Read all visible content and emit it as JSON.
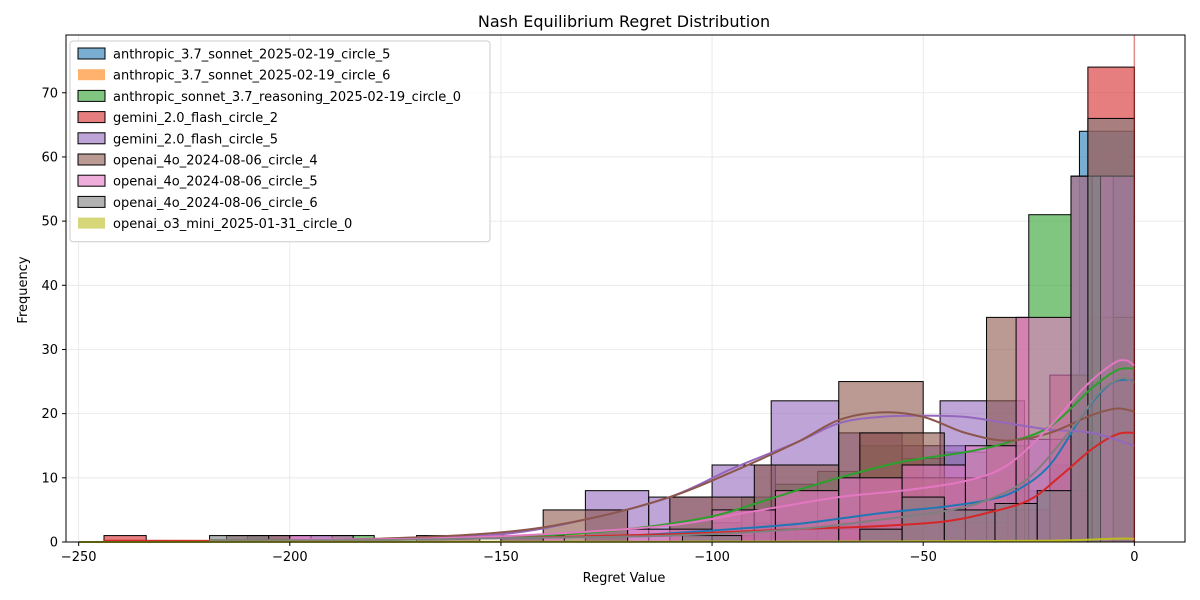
{
  "chart_data": {
    "type": "bar",
    "title": "Nash Equilibrium Regret Distribution",
    "xlabel": "Regret Value",
    "ylabel": "Frequency",
    "xlim": [
      -253,
      12
    ],
    "ylim": [
      0,
      79
    ],
    "xticks": [
      -250,
      -200,
      -150,
      -100,
      -50,
      0
    ],
    "yticks": [
      0,
      10,
      20,
      30,
      40,
      50,
      60,
      70
    ],
    "grid": true,
    "legend_position": "top-left",
    "reference_line_x": 0,
    "series": [
      {
        "name": "anthropic_3.7_sonnet_2025-02-19_circle_5",
        "color": "#1f77b4",
        "bins": [
          [
            -195,
            -185,
            1
          ],
          [
            -150,
            -140,
            1
          ],
          [
            -90,
            -80,
            3
          ],
          [
            -80,
            -70,
            2
          ],
          [
            -70,
            -60,
            3
          ],
          [
            -60,
            -50,
            2
          ],
          [
            -50,
            -40,
            6
          ],
          [
            -40,
            -30,
            5
          ],
          [
            -30,
            -20,
            8
          ],
          [
            -20,
            -10,
            12
          ],
          [
            -13,
            0,
            64
          ]
        ],
        "kde": [
          [
            -195,
            0.2
          ],
          [
            -150,
            0.6
          ],
          [
            -120,
            1.0
          ],
          [
            -100,
            1.8
          ],
          [
            -80,
            2.8
          ],
          [
            -60,
            4.5
          ],
          [
            -45,
            5.5
          ],
          [
            -35,
            6.5
          ],
          [
            -28,
            8.0
          ],
          [
            -20,
            12.0
          ],
          [
            -12,
            20.0
          ],
          [
            -6,
            24.5
          ],
          [
            -2,
            25.3
          ],
          [
            0,
            25.0
          ]
        ]
      },
      {
        "name": "anthropic_3.7_sonnet_2025-02-19_circle_6",
        "color": "#ff7f0e",
        "bins": [],
        "kde": []
      },
      {
        "name": "anthropic_sonnet_3.7_reasoning_2025-02-19_circle_0",
        "color": "#2ca02c",
        "bins": [
          [
            -190,
            -180,
            1
          ],
          [
            -150,
            -140,
            1
          ],
          [
            -100,
            -93,
            3
          ],
          [
            -93,
            -85,
            7
          ],
          [
            -85,
            -75,
            9
          ],
          [
            -75,
            -65,
            11
          ],
          [
            -65,
            -55,
            15
          ],
          [
            -55,
            -45,
            13
          ],
          [
            -45,
            -35,
            14
          ],
          [
            -35,
            -25,
            15
          ],
          [
            -25,
            -15,
            51
          ],
          [
            -15,
            0,
            26
          ]
        ],
        "kde": [
          [
            -190,
            0.4
          ],
          [
            -160,
            0.6
          ],
          [
            -140,
            1.0
          ],
          [
            -120,
            2.0
          ],
          [
            -100,
            4.0
          ],
          [
            -85,
            7.0
          ],
          [
            -70,
            10.0
          ],
          [
            -55,
            12.5
          ],
          [
            -40,
            14.0
          ],
          [
            -30,
            15.5
          ],
          [
            -20,
            18.0
          ],
          [
            -10,
            24.0
          ],
          [
            -4,
            26.8
          ],
          [
            0,
            27.0
          ]
        ]
      },
      {
        "name": "gemini_2.0_flash_circle_2",
        "color": "#d62728",
        "bins": [
          [
            -244,
            -234,
            1
          ],
          [
            -150,
            -140,
            1
          ],
          [
            -100,
            -90,
            1
          ],
          [
            -70,
            -60,
            2
          ],
          [
            -60,
            -50,
            2
          ],
          [
            -50,
            -40,
            3
          ],
          [
            -40,
            -30,
            3
          ],
          [
            -30,
            -20,
            5
          ],
          [
            -20,
            -10,
            8
          ],
          [
            -11,
            0,
            74
          ]
        ],
        "kde": [
          [
            -244,
            0.2
          ],
          [
            -200,
            0.2
          ],
          [
            -150,
            0.6
          ],
          [
            -110,
            1.2
          ],
          [
            -80,
            2.0
          ],
          [
            -60,
            2.5
          ],
          [
            -45,
            3.2
          ],
          [
            -35,
            4.5
          ],
          [
            -25,
            6.5
          ],
          [
            -18,
            10.0
          ],
          [
            -10,
            14.5
          ],
          [
            -4,
            16.8
          ],
          [
            0,
            17.0
          ]
        ]
      },
      {
        "name": "gemini_2.0_flash_circle_5",
        "color": "#9467bd",
        "bins": [
          [
            -210,
            -195,
            1
          ],
          [
            -130,
            -115,
            8
          ],
          [
            -115,
            -100,
            7
          ],
          [
            -100,
            -85,
            12
          ],
          [
            -86,
            -70,
            22
          ],
          [
            -70,
            -55,
            17
          ],
          [
            -55,
            -40,
            15
          ],
          [
            -46,
            -26,
            22
          ],
          [
            -26,
            -15,
            16
          ],
          [
            -15,
            0,
            57
          ]
        ],
        "kde": [
          [
            -210,
            0.3
          ],
          [
            -180,
            0.4
          ],
          [
            -150,
            1.2
          ],
          [
            -130,
            3.5
          ],
          [
            -110,
            7.0
          ],
          [
            -95,
            11.5
          ],
          [
            -80,
            15.5
          ],
          [
            -70,
            18.5
          ],
          [
            -60,
            19.5
          ],
          [
            -50,
            19.7
          ],
          [
            -40,
            19.5
          ],
          [
            -30,
            18.5
          ],
          [
            -20,
            17.5
          ],
          [
            -10,
            17.0
          ],
          [
            0,
            15.0
          ]
        ]
      },
      {
        "name": "openai_4o_2024-08-06_circle_4",
        "color": "#8c564b",
        "bins": [
          [
            -215,
            -200,
            1
          ],
          [
            -170,
            -155,
            1
          ],
          [
            -140,
            -120,
            5
          ],
          [
            -110,
            -90,
            7
          ],
          [
            -90,
            -70,
            12
          ],
          [
            -70,
            -50,
            25
          ],
          [
            -65,
            -45,
            17
          ],
          [
            -55,
            -35,
            10
          ],
          [
            -35,
            -25,
            35
          ],
          [
            -20,
            -10,
            26
          ],
          [
            -10,
            0,
            35
          ]
        ],
        "kde": [
          [
            -215,
            0.3
          ],
          [
            -180,
            0.5
          ],
          [
            -150,
            1.5
          ],
          [
            -130,
            3.5
          ],
          [
            -110,
            7.0
          ],
          [
            -95,
            11.0
          ],
          [
            -80,
            15.5
          ],
          [
            -70,
            19.0
          ],
          [
            -60,
            20.2
          ],
          [
            -50,
            19.5
          ],
          [
            -40,
            17.0
          ],
          [
            -30,
            15.8
          ],
          [
            -20,
            17.0
          ],
          [
            -10,
            19.8
          ],
          [
            -4,
            20.8
          ],
          [
            0,
            20.3
          ]
        ]
      },
      {
        "name": "openai_4o_2024-08-06_circle_5",
        "color": "#e377c2",
        "bins": [
          [
            -200,
            -185,
            1
          ],
          [
            -150,
            -135,
            1
          ],
          [
            -120,
            -100,
            2
          ],
          [
            -100,
            -85,
            5
          ],
          [
            -85,
            -70,
            8
          ],
          [
            -70,
            -55,
            10
          ],
          [
            -55,
            -40,
            12
          ],
          [
            -40,
            -28,
            15
          ],
          [
            -28,
            -15,
            35
          ],
          [
            -15,
            -5,
            57
          ],
          [
            -10,
            0,
            57
          ]
        ],
        "kde": [
          [
            -200,
            0.4
          ],
          [
            -170,
            0.5
          ],
          [
            -140,
            1.2
          ],
          [
            -110,
            2.6
          ],
          [
            -90,
            4.8
          ],
          [
            -70,
            7.0
          ],
          [
            -55,
            8.0
          ],
          [
            -40,
            9.5
          ],
          [
            -30,
            12.0
          ],
          [
            -20,
            18.0
          ],
          [
            -12,
            24.0
          ],
          [
            -5,
            27.8
          ],
          [
            -2,
            28.3
          ],
          [
            0,
            27.5
          ]
        ]
      },
      {
        "name": "openai_4o_2024-08-06_circle_6",
        "color": "#7f7f7f",
        "bins": [
          [
            -219,
            -205,
            1
          ],
          [
            -150,
            -140,
            1
          ],
          [
            -107,
            -93,
            1
          ],
          [
            -65,
            -55,
            2
          ],
          [
            -55,
            -45,
            7
          ],
          [
            -45,
            -33,
            5
          ],
          [
            -33,
            -23,
            6
          ],
          [
            -23,
            -15,
            8
          ],
          [
            -15,
            -8,
            57
          ],
          [
            -11,
            0,
            66
          ]
        ],
        "kde": [
          [
            -219,
            0.3
          ],
          [
            -180,
            0.3
          ],
          [
            -150,
            0.6
          ],
          [
            -110,
            1.0
          ],
          [
            -80,
            2.0
          ],
          [
            -60,
            3.5
          ],
          [
            -45,
            4.8
          ],
          [
            -35,
            6.5
          ],
          [
            -25,
            10.0
          ],
          [
            -15,
            17.5
          ],
          [
            -8,
            23.5
          ],
          [
            -3,
            25.5
          ],
          [
            0,
            24.8
          ]
        ]
      },
      {
        "name": "openai_o3_mini_2025-01-31_circle_0",
        "color": "#bcbd22",
        "bins": [],
        "kde": [
          [
            -250,
            0.0
          ],
          [
            -100,
            0.05
          ],
          [
            -50,
            0.1
          ],
          [
            -20,
            0.2
          ],
          [
            -5,
            0.5
          ],
          [
            0,
            0.5
          ]
        ]
      }
    ]
  }
}
